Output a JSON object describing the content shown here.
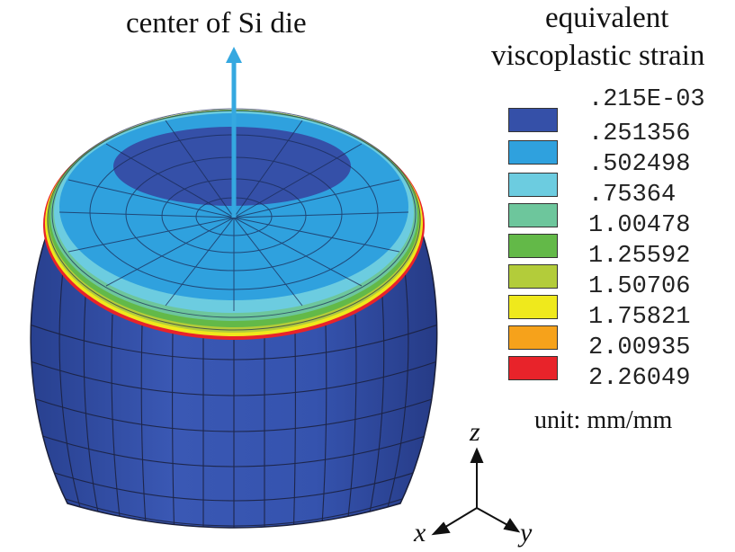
{
  "annotation": {
    "center_label": "center of Si die"
  },
  "legend": {
    "title_line1": "equivalent",
    "title_line2": "viscoplastic strain",
    "unit": "unit: mm/mm",
    "levels": [
      {
        "value": ".215E-03",
        "color": "#3550A8"
      },
      {
        "value": ".251356",
        "color": "#2FA1DE"
      },
      {
        "value": ".502498",
        "color": "#6CCCE0"
      },
      {
        "value": ".75364",
        "color": "#6DC69C"
      },
      {
        "value": "1.00478",
        "color": "#63B948"
      },
      {
        "value": "1.25592",
        "color": "#B3CC3A"
      },
      {
        "value": "1.50706",
        "color": "#EFE91C"
      },
      {
        "value": "1.75821",
        "color": "#F6A21B"
      },
      {
        "value": "2.00935",
        "color": "#E8232A"
      },
      {
        "value": "2.26049",
        "color": null
      }
    ]
  },
  "axes": {
    "z": "z",
    "x": "x",
    "y": "y"
  },
  "colors": {
    "arrow": "#35A8E0",
    "bump_body": "#3450A8",
    "mesh_lines": "#1a1f3a"
  }
}
